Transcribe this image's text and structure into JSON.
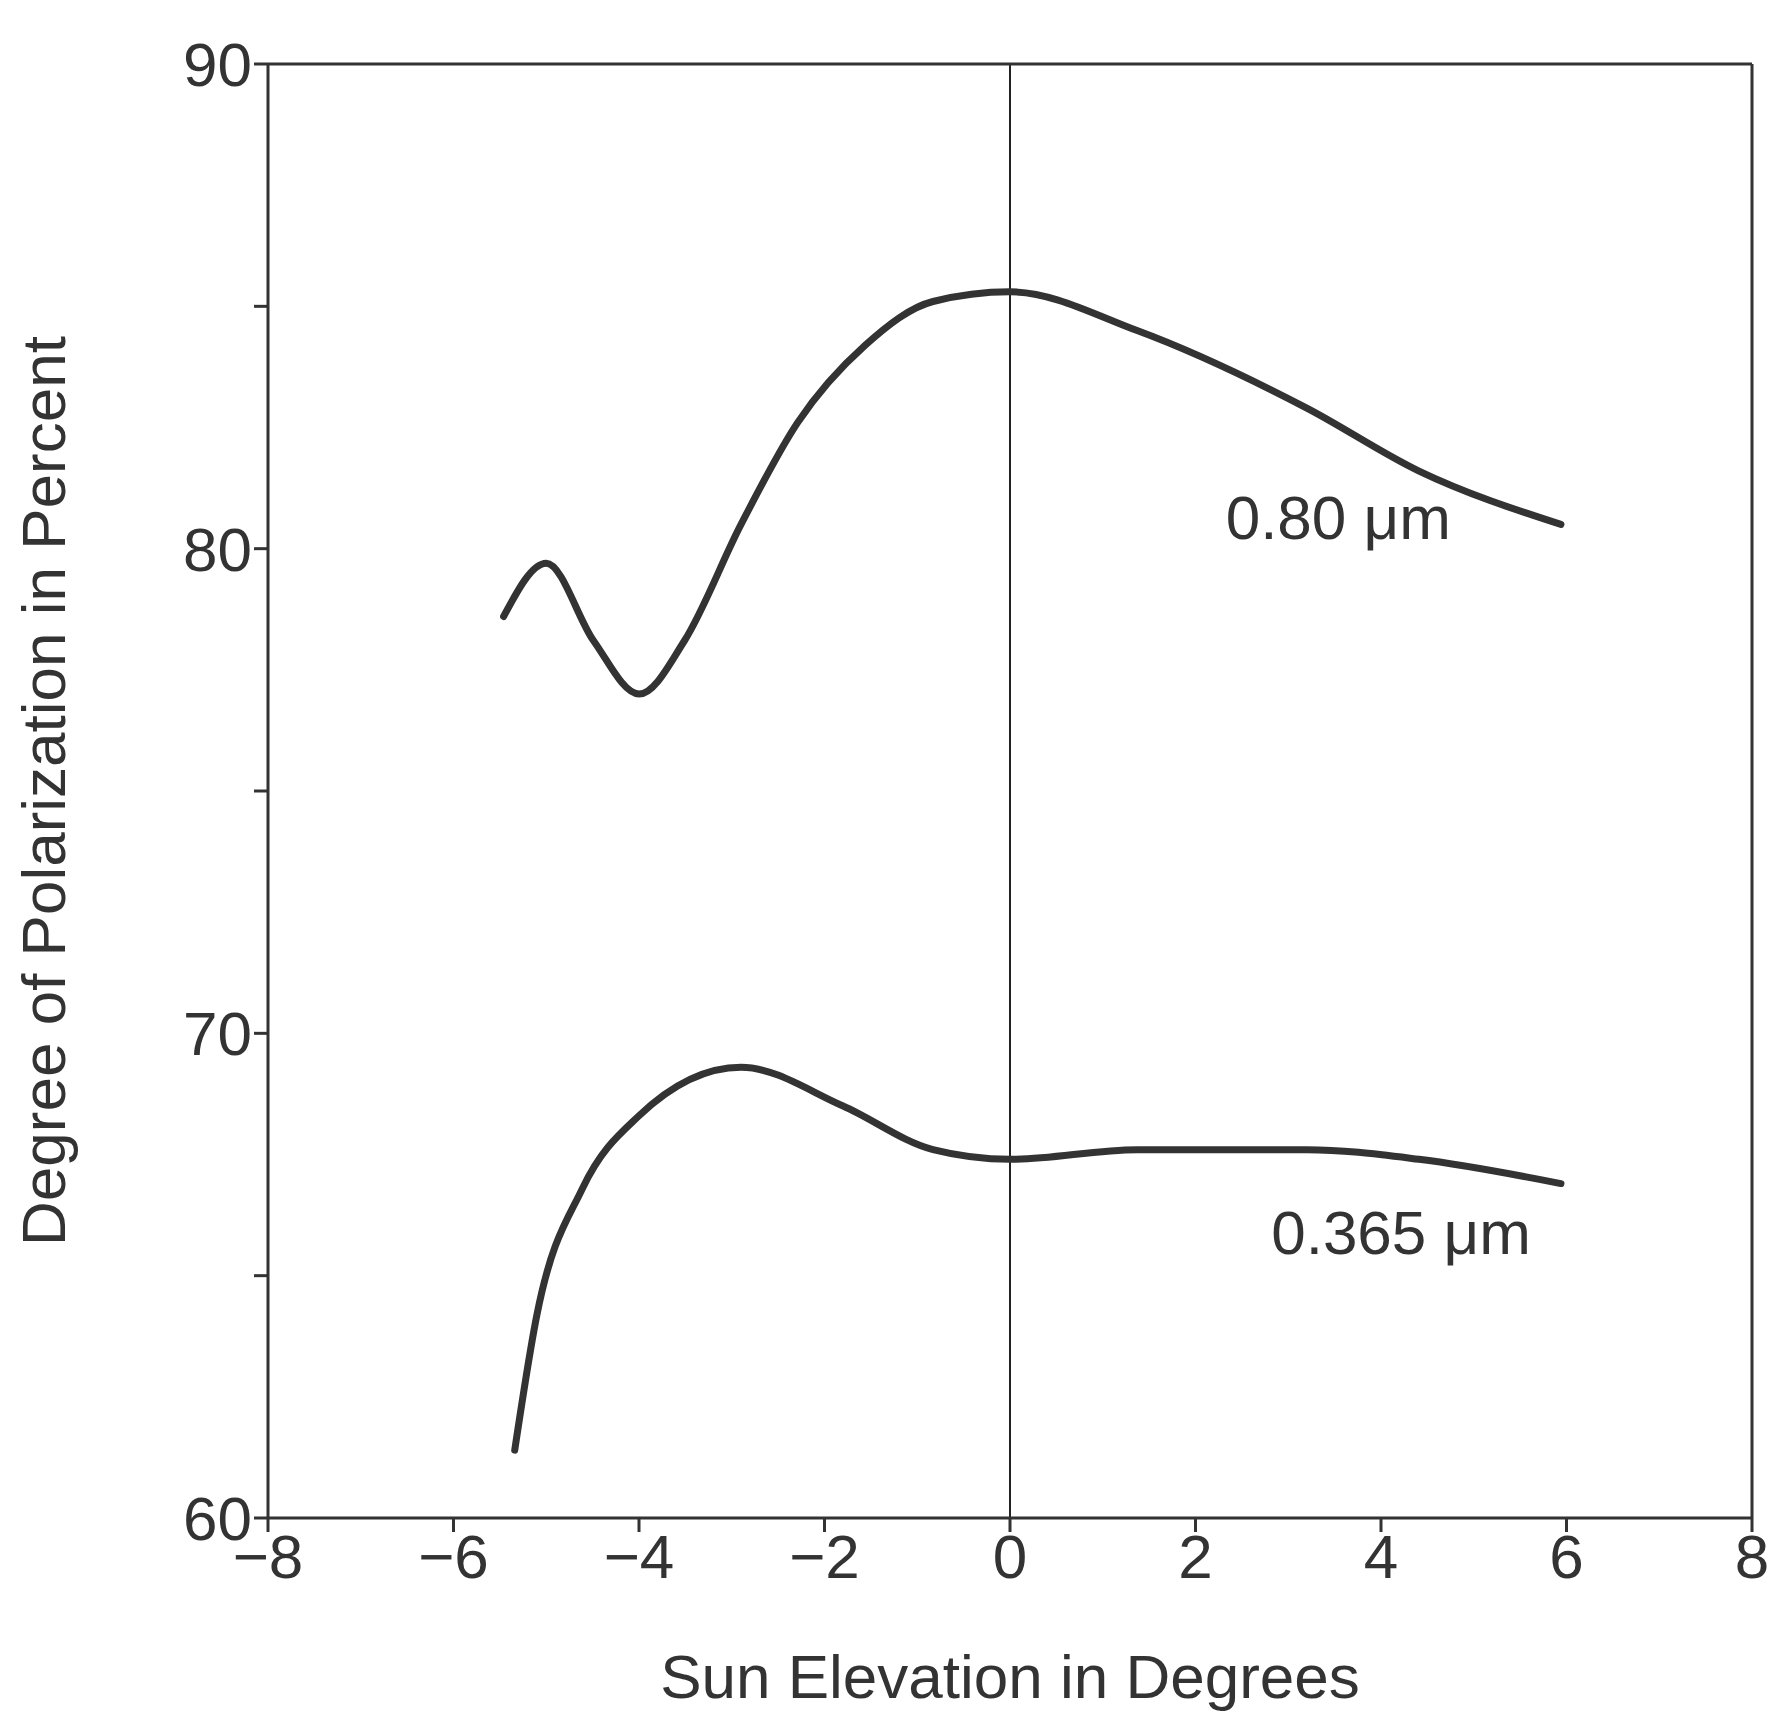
{
  "chart_data": {
    "type": "line",
    "xlabel": "Sun Elevation in Degrees",
    "ylabel": "Degree of Polarization in Percent",
    "xlim": [
      -8,
      8
    ],
    "xticks": [
      -8,
      -6,
      -4,
      -2,
      0,
      2,
      4,
      6,
      8
    ],
    "ylim": [
      60,
      90
    ],
    "yticks": [
      60,
      {
        "value": 65,
        "label": null
      },
      70,
      {
        "value": 75,
        "label": null
      },
      80,
      {
        "value": 85,
        "label": null
      },
      90
    ],
    "marker": "none",
    "ref_lines": [
      {
        "axis": "x",
        "value": 0,
        "color": "#222222"
      }
    ],
    "series": [
      {
        "name": "0.80 μm",
        "color": "#333333",
        "x": [
          -5.46,
          -5.0,
          -4.49,
          -4.0,
          -3.51,
          -2.9,
          -2.29,
          -1.56,
          -0.83,
          0,
          1.37,
          3.2,
          4.41,
          5.94
        ],
        "values": [
          78.6,
          79.7,
          78.1,
          77.0,
          78.1,
          80.5,
          82.6,
          84.2,
          85.1,
          85.3,
          84.5,
          82.9,
          81.6,
          80.5
        ]
      },
      {
        "name": "0.365 μm",
        "color": "#333333",
        "x": [
          -5.34,
          -5.1,
          -4.61,
          -4.0,
          -2.9,
          -1.8,
          -0.83,
          0,
          1.37,
          3.2,
          4.41,
          5.94
        ],
        "values": [
          61.4,
          64.2,
          66.8,
          68.3,
          69.3,
          68.5,
          67.6,
          67.4,
          67.6,
          67.6,
          67.4,
          66.9
        ]
      }
    ]
  }
}
